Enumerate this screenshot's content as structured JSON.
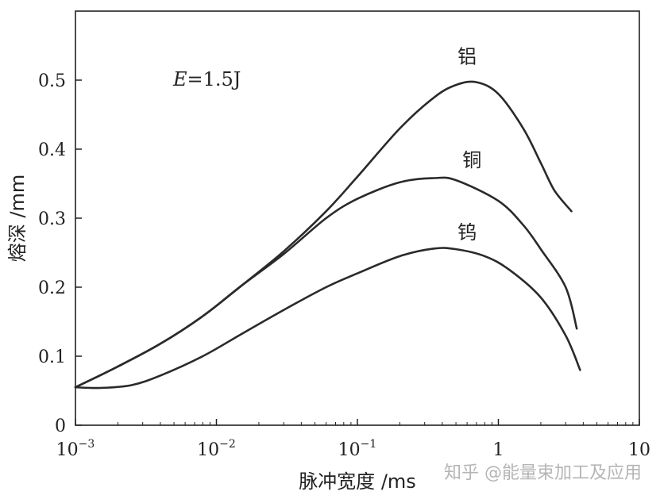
{
  "chart_data": {
    "type": "line",
    "xlabel": "脉冲宽度 /ms",
    "ylabel": "熔深 /mm",
    "xscale": "log",
    "xlim": [
      0.001,
      10
    ],
    "ylim": [
      0,
      0.6
    ],
    "grid": false,
    "annotation": "E=1.5J",
    "xticks": [
      {
        "base": "10",
        "exp": "−3",
        "value": 0.001
      },
      {
        "base": "10",
        "exp": "−2",
        "value": 0.01
      },
      {
        "base": "10",
        "exp": "−1",
        "value": 0.1
      },
      {
        "base": "1",
        "exp": "",
        "value": 1
      },
      {
        "base": "10",
        "exp": "",
        "value": 10
      }
    ],
    "yticks": [
      {
        "label": "0",
        "value": 0
      },
      {
        "label": "0.1",
        "value": 0.1
      },
      {
        "label": "0.2",
        "value": 0.2
      },
      {
        "label": "0.3",
        "value": 0.3
      },
      {
        "label": "0.4",
        "value": 0.4
      },
      {
        "label": "0.5",
        "value": 0.5
      }
    ],
    "series": [
      {
        "name": "铝",
        "points": [
          [
            0.001,
            0.055
          ],
          [
            0.002,
            0.085
          ],
          [
            0.004,
            0.118
          ],
          [
            0.008,
            0.158
          ],
          [
            0.015,
            0.202
          ],
          [
            0.03,
            0.252
          ],
          [
            0.06,
            0.31
          ],
          [
            0.1,
            0.36
          ],
          [
            0.2,
            0.43
          ],
          [
            0.35,
            0.475
          ],
          [
            0.5,
            0.493
          ],
          [
            0.7,
            0.497
          ],
          [
            1.0,
            0.48
          ],
          [
            1.5,
            0.43
          ],
          [
            2.0,
            0.38
          ],
          [
            2.5,
            0.34
          ],
          [
            3.3,
            0.31
          ]
        ]
      },
      {
        "name": "铜",
        "points": [
          [
            0.001,
            0.055
          ],
          [
            0.002,
            0.085
          ],
          [
            0.004,
            0.118
          ],
          [
            0.008,
            0.158
          ],
          [
            0.015,
            0.202
          ],
          [
            0.03,
            0.248
          ],
          [
            0.06,
            0.3
          ],
          [
            0.1,
            0.328
          ],
          [
            0.2,
            0.352
          ],
          [
            0.35,
            0.358
          ],
          [
            0.5,
            0.355
          ],
          [
            1.0,
            0.325
          ],
          [
            1.5,
            0.29
          ],
          [
            2.0,
            0.255
          ],
          [
            3.0,
            0.2
          ],
          [
            3.6,
            0.14
          ]
        ]
      },
      {
        "name": "钨",
        "points": [
          [
            0.001,
            0.055
          ],
          [
            0.0015,
            0.054
          ],
          [
            0.0025,
            0.058
          ],
          [
            0.004,
            0.072
          ],
          [
            0.008,
            0.1
          ],
          [
            0.015,
            0.132
          ],
          [
            0.03,
            0.167
          ],
          [
            0.06,
            0.2
          ],
          [
            0.1,
            0.22
          ],
          [
            0.2,
            0.245
          ],
          [
            0.35,
            0.256
          ],
          [
            0.5,
            0.255
          ],
          [
            0.8,
            0.245
          ],
          [
            1.2,
            0.225
          ],
          [
            2.0,
            0.185
          ],
          [
            3.0,
            0.13
          ],
          [
            3.8,
            0.08
          ]
        ]
      }
    ],
    "series_label_positions": [
      {
        "name": "铝",
        "x": 0.6,
        "y": 0.525
      },
      {
        "name": "铜",
        "x": 0.65,
        "y": 0.375
      },
      {
        "name": "钨",
        "x": 0.6,
        "y": 0.27
      }
    ]
  },
  "watermark": "知乎 @能量束加工及应用"
}
